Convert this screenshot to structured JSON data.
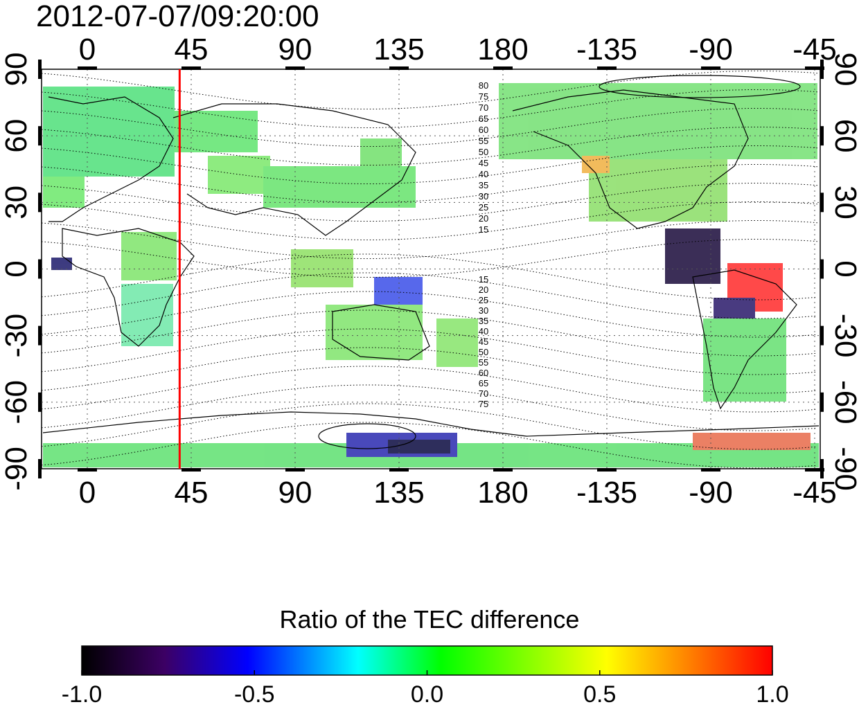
{
  "header": {
    "timestamp": "2012-07-07/09:20:00"
  },
  "map": {
    "top_axis_labels": [
      "0",
      "45",
      "90",
      "135",
      "180",
      "-135",
      "-90",
      "-45"
    ],
    "bottom_axis_labels": [
      "0",
      "45",
      "90",
      "135",
      "180",
      "-135",
      "-90",
      "-45"
    ],
    "left_axis_labels": [
      "90",
      "60",
      "30",
      "0",
      "-30",
      "-60",
      "-90"
    ],
    "right_axis_labels": [
      "90",
      "60",
      "30",
      "0",
      "-30",
      "-60",
      "-90"
    ],
    "contour_labels_north": [
      "80",
      "75",
      "70",
      "65",
      "60",
      "55",
      "50",
      "45",
      "40",
      "35",
      "30",
      "25",
      "20",
      "15"
    ],
    "contour_labels_south": [
      "15",
      "20",
      "25",
      "30",
      "35",
      "40",
      "45",
      "50",
      "55",
      "60",
      "65",
      "70",
      "75"
    ],
    "marker_longitude": 40,
    "marker_color": "#ff0000"
  },
  "colorbar": {
    "title": "Ratio of the TEC difference",
    "tick_labels": [
      "-1.0",
      "-0.5",
      "0.0",
      "0.5",
      "1.0"
    ],
    "min": -1.0,
    "max": 1.0,
    "colors": [
      "#000000",
      "#3c0064",
      "#0000ff",
      "#00ffff",
      "#00ff00",
      "#ffff00",
      "#ff8000",
      "#ff0000"
    ]
  }
}
